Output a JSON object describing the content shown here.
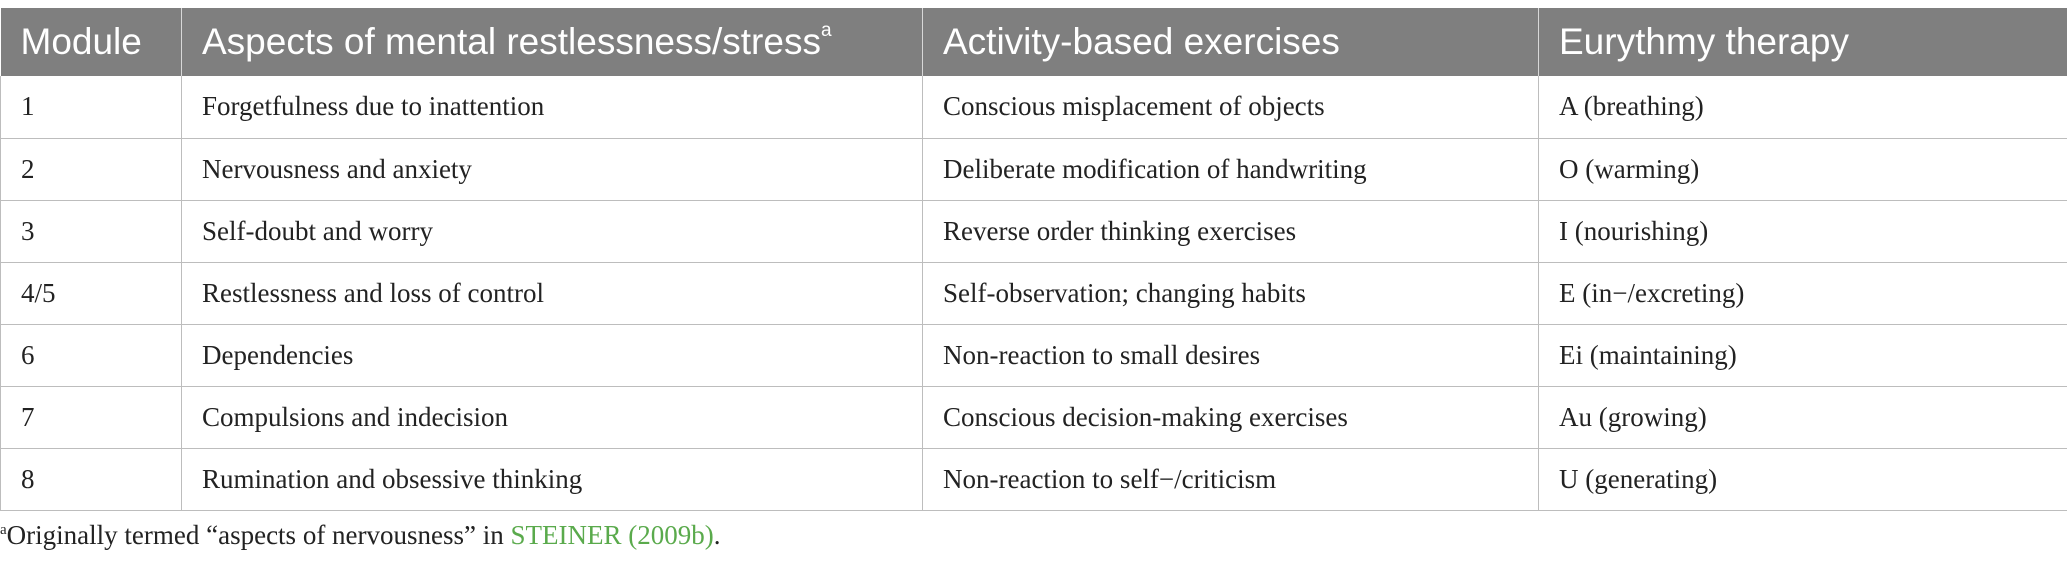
{
  "table": {
    "header": {
      "module": "Module",
      "aspects": "Aspects of mental restlessness/stress",
      "aspects_sup": "a",
      "activity": "Activity-based exercises",
      "eurythmy": "Eurythmy therapy"
    },
    "rows": [
      {
        "module": "1",
        "aspect": "Forgetfulness due to inattention",
        "activity": "Conscious misplacement of objects",
        "eurythmy": "A (breathing)"
      },
      {
        "module": "2",
        "aspect": "Nervousness and anxiety",
        "activity": "Deliberate modification of handwriting",
        "eurythmy": "O (warming)"
      },
      {
        "module": "3",
        "aspect": "Self-doubt and worry",
        "activity": "Reverse order thinking exercises",
        "eurythmy": "I (nourishing)"
      },
      {
        "module": "4/5",
        "aspect": "Restlessness and loss of control",
        "activity": "Self-observation; changing habits",
        "eurythmy": "E (in−/excreting)"
      },
      {
        "module": "6",
        "aspect": "Dependencies",
        "activity": "Non-reaction to small desires",
        "eurythmy": "Ei (maintaining)"
      },
      {
        "module": "7",
        "aspect": "Compulsions and indecision",
        "activity": "Conscious decision-making exercises",
        "eurythmy": "Au (growing)"
      },
      {
        "module": "8",
        "aspect": "Rumination and obsessive thinking",
        "activity": "Non-reaction to self−/criticism",
        "eurythmy": "U (generating)"
      }
    ]
  },
  "footnote": {
    "marker": "a",
    "text_before": "Originally termed “aspects of nervousness” in ",
    "reference": "STEINER (2009b)",
    "text_after": "."
  },
  "colors": {
    "header_bg": "#7f7f7f",
    "header_text": "#ffffff",
    "grid": "#bdbdbd",
    "reference_link": "#5aaa4c"
  }
}
